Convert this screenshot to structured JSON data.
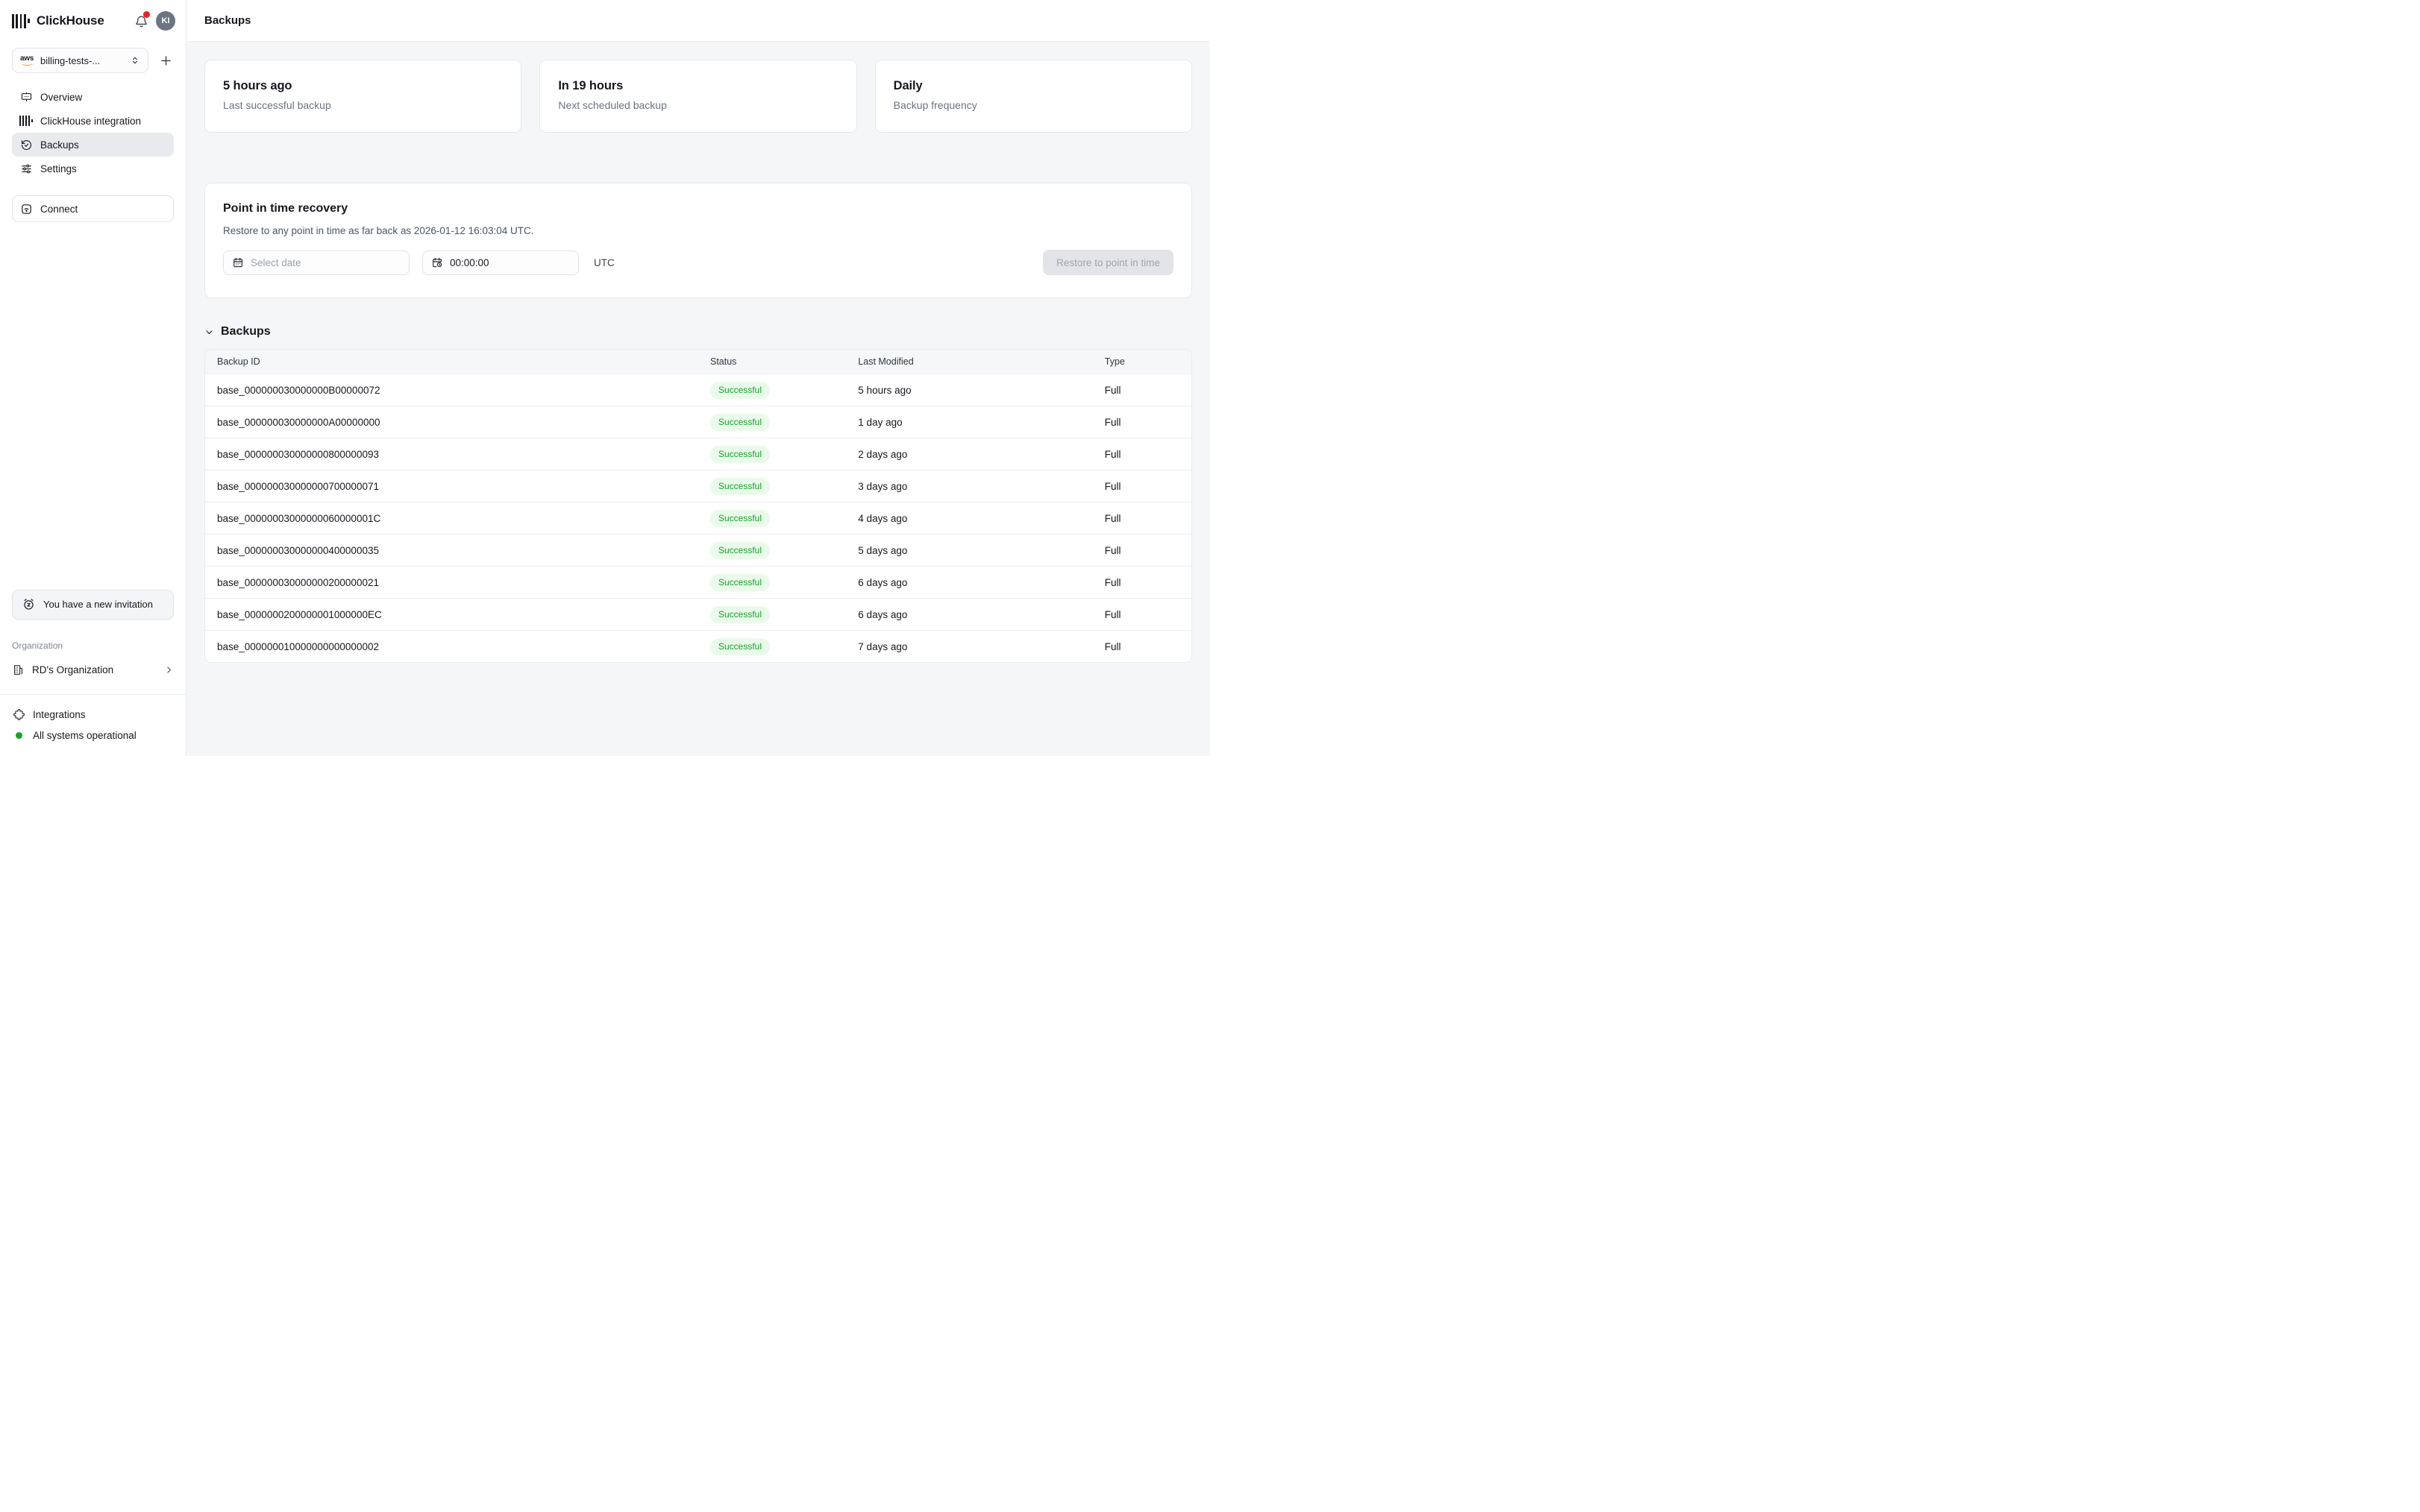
{
  "colors": {
    "success-text": "#18a02b",
    "success-bg": "#eafaea",
    "notification-red": "#dc2626",
    "status-green": "#16a327",
    "aws-orange": "#f29111"
  },
  "header": {
    "brand": "ClickHouse",
    "avatar_initials": "KI"
  },
  "sidebar": {
    "service_selector": {
      "provider": "aws",
      "label": "billing-tests-..."
    },
    "nav": [
      {
        "label": "Overview",
        "active": false
      },
      {
        "label": "ClickHouse integration",
        "active": false
      },
      {
        "label": "Backups",
        "active": true
      },
      {
        "label": "Settings",
        "active": false
      }
    ],
    "connect_label": "Connect",
    "invitation": {
      "text": "You have a new invitation"
    },
    "organization": {
      "section_label": "Organization",
      "name": "RD's Organization"
    },
    "footer": {
      "integrations_label": "Integrations",
      "status_text": "All systems operational"
    }
  },
  "main": {
    "page_title": "Backups",
    "summary_cards": [
      {
        "title": "5 hours ago",
        "subtitle": "Last successful backup"
      },
      {
        "title": "In 19 hours",
        "subtitle": "Next scheduled backup"
      },
      {
        "title": "Daily",
        "subtitle": "Backup frequency"
      }
    ],
    "pitr": {
      "title": "Point in time recovery",
      "description": "Restore to any point in time as far back as 2026-01-12 16:03:04 UTC.",
      "date_placeholder": "Select date",
      "time_value": "00:00:00",
      "timezone_label": "UTC",
      "restore_button_label": "Restore to point in time"
    },
    "backups_section": {
      "title": "Backups",
      "table": {
        "columns": [
          "Backup ID",
          "Status",
          "Last Modified",
          "Type"
        ],
        "rows": [
          {
            "id": "base_000000030000000B00000072",
            "status": "Successful",
            "last_modified": "5 hours ago",
            "type": "Full"
          },
          {
            "id": "base_000000030000000A00000000",
            "status": "Successful",
            "last_modified": "1 day ago",
            "type": "Full"
          },
          {
            "id": "base_000000030000000800000093",
            "status": "Successful",
            "last_modified": "2 days ago",
            "type": "Full"
          },
          {
            "id": "base_000000030000000700000071",
            "status": "Successful",
            "last_modified": "3 days ago",
            "type": "Full"
          },
          {
            "id": "base_00000003000000060000001C",
            "status": "Successful",
            "last_modified": "4 days ago",
            "type": "Full"
          },
          {
            "id": "base_000000030000000400000035",
            "status": "Successful",
            "last_modified": "5 days ago",
            "type": "Full"
          },
          {
            "id": "base_000000030000000200000021",
            "status": "Successful",
            "last_modified": "6 days ago",
            "type": "Full"
          },
          {
            "id": "base_0000000200000001000000EC",
            "status": "Successful",
            "last_modified": "6 days ago",
            "type": "Full"
          },
          {
            "id": "base_000000010000000000000002",
            "status": "Successful",
            "last_modified": "7 days ago",
            "type": "Full"
          }
        ]
      }
    }
  }
}
